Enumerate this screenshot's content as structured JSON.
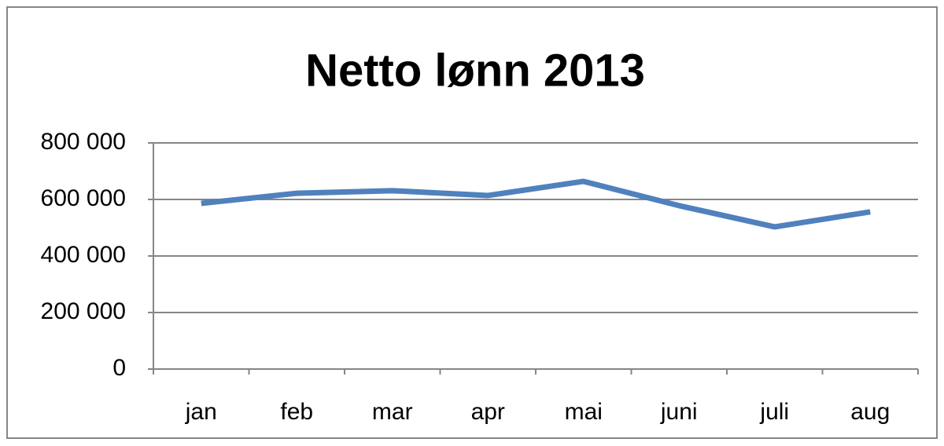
{
  "chart_data": {
    "type": "line",
    "title": "Netto lønn 2013",
    "categories": [
      "jan",
      "feb",
      "mar",
      "apr",
      "mai",
      "juni",
      "juli",
      "aug"
    ],
    "series": [
      {
        "color": "#4f81bd",
        "values": [
          586000,
          622000,
          631000,
          614000,
          664000,
          578000,
          503000,
          556000
        ]
      }
    ],
    "ylim": [
      0,
      800000
    ],
    "yticks": [
      0,
      {
        "value": 200000,
        "label": "200 000"
      },
      {
        "value": 400000,
        "label": "400 000"
      },
      {
        "value": 600000,
        "label": "600 000"
      },
      {
        "value": 800000,
        "label": "800 000"
      }
    ],
    "grid": true
  }
}
